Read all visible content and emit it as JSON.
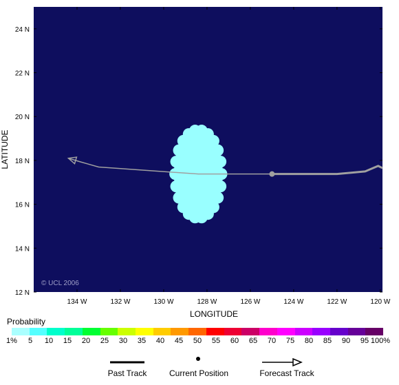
{
  "map": {
    "background_color": "#0e0e5e",
    "lat_ticks": [
      "24 N",
      "22 N",
      "20 N",
      "18 N",
      "16 N",
      "14 N",
      "12 N"
    ],
    "lon_ticks": [
      "134 W",
      "132 W",
      "130 W",
      "128 W",
      "126 W",
      "124 W",
      "122 W",
      "120 W"
    ],
    "x_axis_title": "LONGITUDE",
    "y_axis_title": "LATITUDE",
    "copyright": "© UCL 2006",
    "lon_range": [
      -136,
      -119.9
    ],
    "lat_range": [
      12,
      25
    ],
    "probability_area": {
      "color": "#99ffff",
      "center": [
        -128.4,
        17.38
      ],
      "radius_lon": 1.25,
      "radius_lat": 2.35
    },
    "track_color": "#a0a0a0",
    "past_track": [
      [
        -119.9,
        17.65
      ],
      [
        -120.1,
        17.75
      ],
      [
        -120.7,
        17.5
      ],
      [
        -122,
        17.38
      ],
      [
        -125,
        17.38
      ]
    ],
    "current_position": [
      -125,
      17.38
    ],
    "forecast_track": [
      [
        -125,
        17.38
      ],
      [
        -128.4,
        17.38
      ],
      [
        -133,
        17.7
      ],
      [
        -133.9,
        17.95
      ],
      [
        -134.4,
        18.1
      ]
    ]
  },
  "legend": {
    "probability_title": "Probability",
    "colors": [
      "#aaffff",
      "#55ffff",
      "#00ffcc",
      "#00ff99",
      "#00ff33",
      "#66ff00",
      "#ccff00",
      "#ffff00",
      "#ffcc00",
      "#ff9900",
      "#ff6600",
      "#ff0000",
      "#ee0033",
      "#cc0066",
      "#ff00cc",
      "#ff00ff",
      "#cc00ff",
      "#9900ff",
      "#6600cc",
      "#660099",
      "#660066"
    ],
    "scale_labels": [
      "1%",
      "5",
      "10",
      "15",
      "20",
      "25",
      "30",
      "35",
      "40",
      "45",
      "50",
      "55",
      "60",
      "65",
      "70",
      "75",
      "80",
      "85",
      "90",
      "95",
      "100%"
    ],
    "past_track_label": "Past Track",
    "current_position_label": "Current Position",
    "forecast_track_label": "Forecast Track"
  }
}
